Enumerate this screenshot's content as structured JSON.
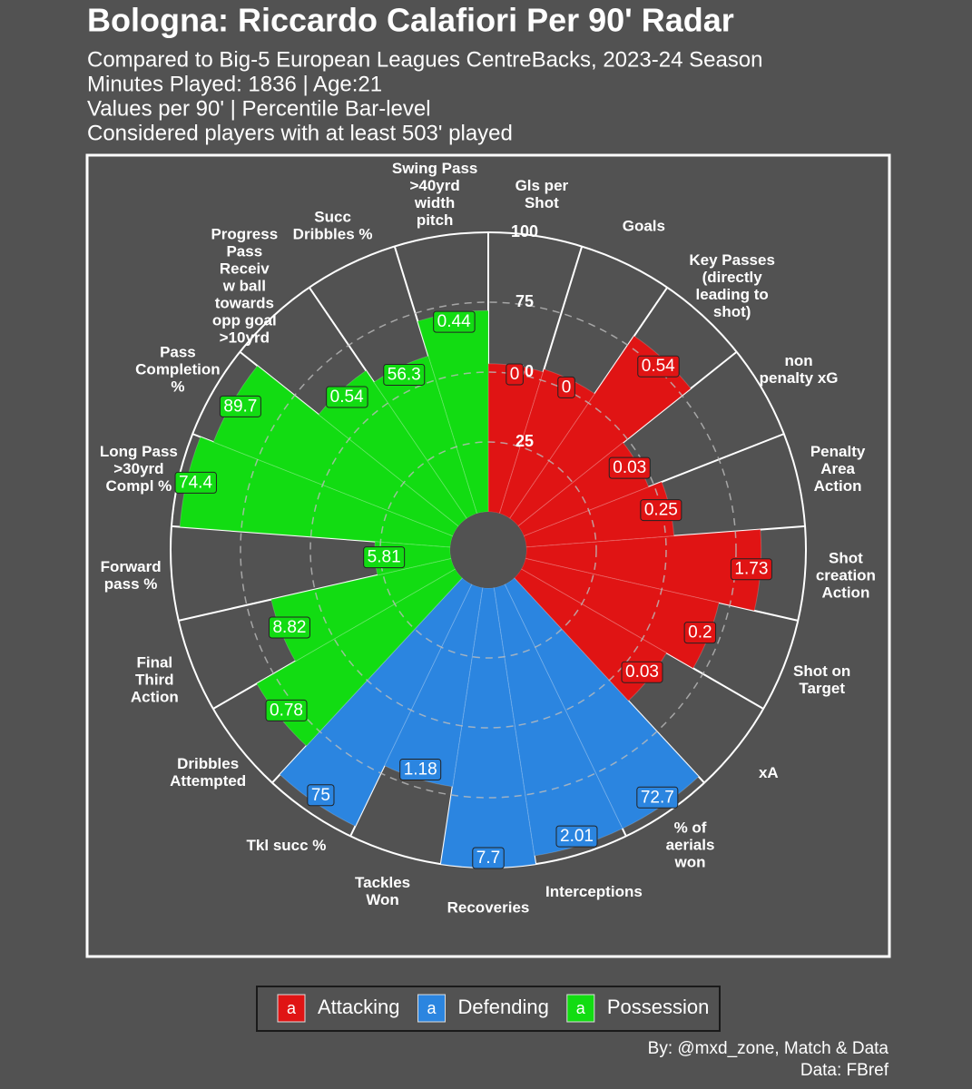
{
  "chart_data": {
    "type": "polar_bar",
    "title": "Bologna: Riccardo Calafiori Per 90' Radar",
    "subtitle": [
      "Compared to Big-5 European Leagues CentreBacks, 2023-24 Season",
      "Minutes Played: 1836 | Age:21",
      "Values per 90' | Percentile Bar-level",
      "Considered players with at least 503' played"
    ],
    "caption": [
      "By: @mxd_zone, Match & Data",
      "Data: FBref"
    ],
    "ylim": [
      0,
      100
    ],
    "yticks": [
      25,
      50,
      75,
      100
    ],
    "legend_key_glyph": "a",
    "series": [
      {
        "name": "Attacking",
        "color": "#e01414",
        "categories": [
          "Gls per\nShot",
          "Goals",
          "Key Passes\n(directly\nleading to\nshot)",
          "non\npenalty xG",
          "Penalty\nArea\nAction",
          "Shot\ncreation\nAction",
          "Shot on\nTarget",
          "xA"
        ],
        "values": [
          0,
          0,
          0.54,
          0.03,
          0.25,
          1.73,
          0.2,
          0.03
        ],
        "percentiles": [
          53,
          54,
          79,
          48,
          53,
          84,
          71,
          60
        ]
      },
      {
        "name": "Defending",
        "color": "#2b85e0",
        "categories": [
          "% of\naerials\nwon",
          "Interceptions",
          "Recoveries",
          "Tackles\nWon",
          "Tkl succ %"
        ],
        "values": [
          72.7,
          2.01,
          7.7,
          1.18,
          75
        ],
        "percentiles": [
          97,
          97,
          100,
          72,
          96
        ]
      },
      {
        "name": "Possession",
        "color": "#12dc12",
        "categories": [
          "Dribbles\nAttempted",
          "Final\nThird\nAction",
          "Forward\npass %",
          "Long Pass\n>30yrd\nCompl %",
          "Pass\nCompletion\n%",
          "Progress\nPass\nReceiv\nw ball\ntowards\nopp goal\n>10yrd",
          "Succ\nDribbles %",
          "Swing Pass\n>40yrd\nwidth\npitch"
        ],
        "values": [
          0.78,
          8.82,
          5.81,
          74.4,
          89.7,
          0.54,
          56.3,
          0.44
        ],
        "percentiles": [
          82,
          66,
          27,
          97,
          92,
          64,
          59,
          72
        ]
      }
    ]
  }
}
